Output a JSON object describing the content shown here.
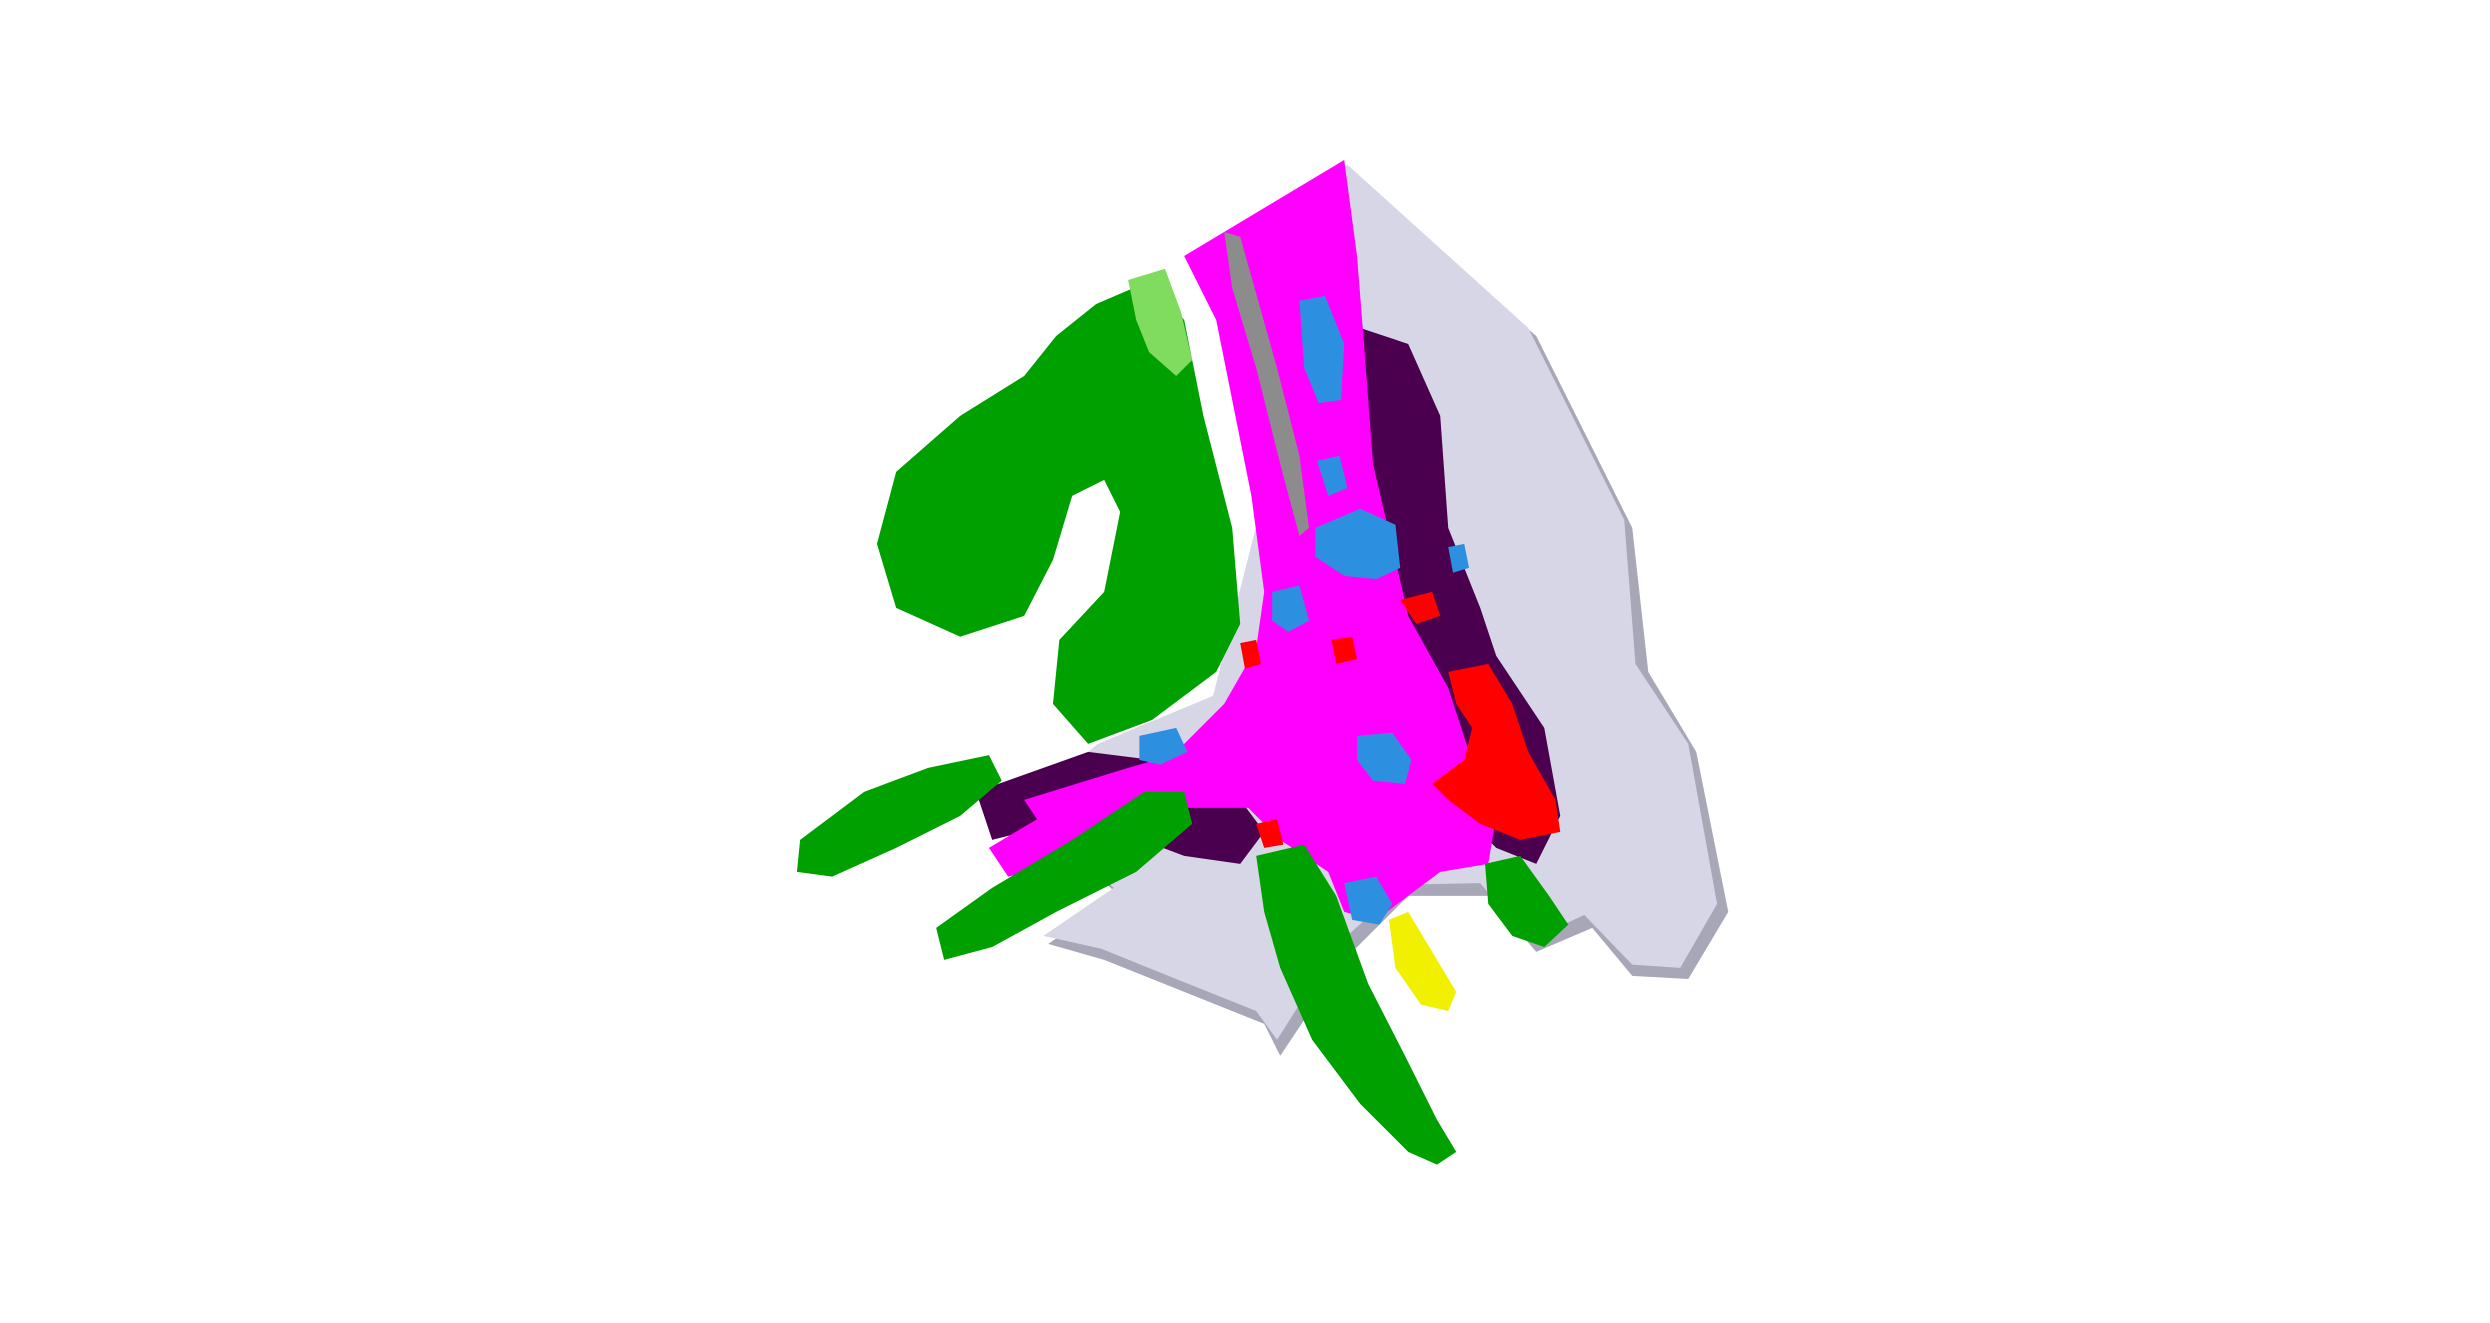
{
  "scene": {
    "background": "#ffffff",
    "colors": {
      "ground": "#d6d6e6",
      "ground_shadow": "#a7a7b7",
      "road": "#ff00ff",
      "sidewalk_dark": "#4a004f",
      "vegetation": "#00a000",
      "vegetation_light": "#7fdc5f",
      "car": "#2d8fe0",
      "person": "#ff0000",
      "pole": "#8c8c8c",
      "sign": "#f0f000"
    }
  }
}
